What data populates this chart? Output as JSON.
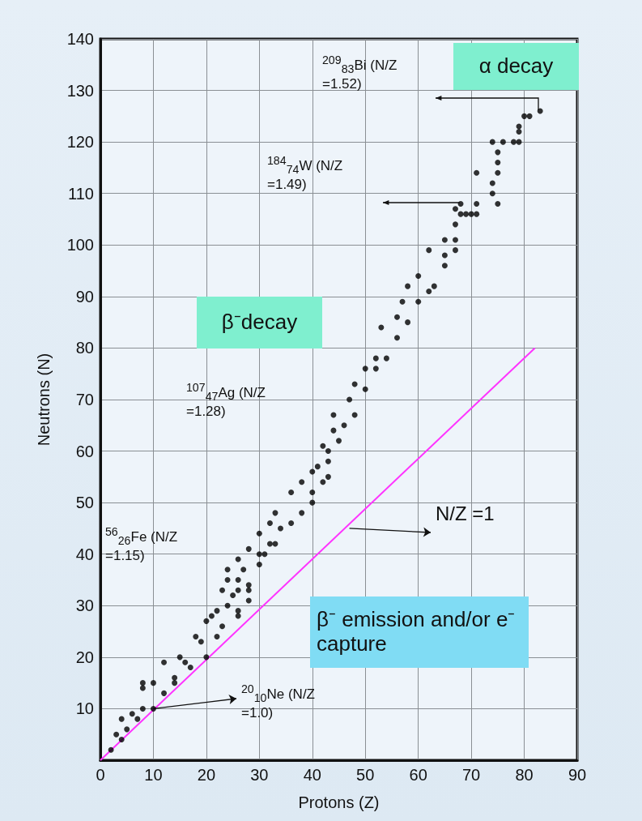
{
  "chart_data": {
    "type": "scatter",
    "xlabel": "Protons (Z)",
    "ylabel": "Neutrons (N)",
    "xlim": [
      0,
      90
    ],
    "xticks": [
      0,
      10,
      20,
      30,
      40,
      50,
      60,
      70,
      80,
      90
    ],
    "ylim": [
      0,
      140
    ],
    "yticks": [
      {
        "value": 0,
        "label": null
      },
      10,
      20,
      30,
      40,
      50,
      60,
      70,
      80,
      90,
      100,
      110,
      120,
      130,
      140
    ],
    "grid": true,
    "marker": "circle",
    "series": [
      {
        "color": "#000000",
        "x": [
          2,
          3,
          4,
          5,
          4,
          6,
          7,
          8,
          10,
          8,
          8,
          10,
          12,
          12,
          14,
          14,
          15,
          16,
          17,
          18,
          19,
          20,
          20,
          21,
          22,
          22,
          23,
          24,
          23,
          25,
          24,
          24,
          26,
          26,
          26,
          26,
          26,
          27,
          28,
          28,
          28,
          28,
          30,
          30,
          30,
          31,
          32,
          32,
          33,
          34,
          33,
          36,
          38,
          36,
          38,
          40,
          40,
          40,
          41,
          42,
          43,
          43,
          42,
          43,
          45,
          44,
          46,
          44,
          48,
          47,
          48,
          50,
          50,
          52,
          52,
          54,
          53,
          56,
          58,
          56,
          60,
          57,
          58,
          60,
          62,
          63,
          62,
          65,
          65,
          67,
          65,
          67,
          67,
          67,
          68,
          68,
          69,
          70,
          71,
          71,
          71,
          74,
          74,
          75,
          75,
          75,
          75,
          74,
          76,
          78,
          79,
          79,
          79,
          80,
          81,
          83
        ],
        "values": [
          2,
          5,
          4,
          6,
          8,
          9,
          8,
          10,
          10,
          15,
          14,
          15,
          13,
          19,
          16,
          15,
          20,
          19,
          18,
          24,
          23,
          20,
          27,
          28,
          29,
          24,
          26,
          30,
          33,
          32,
          35,
          37,
          29,
          28,
          35,
          33,
          39,
          37,
          31,
          34,
          33,
          41,
          44,
          40,
          38,
          40,
          42,
          46,
          48,
          45,
          42,
          46,
          48,
          52,
          54,
          50,
          52,
          56,
          57,
          54,
          58,
          55,
          61,
          60,
          62,
          64,
          65,
          67,
          67,
          70,
          73,
          72,
          76,
          78,
          76,
          78,
          84,
          82,
          85,
          86,
          89,
          89,
          92,
          94,
          91,
          92,
          99,
          96,
          98,
          99,
          101,
          101,
          104,
          107,
          108,
          106,
          106,
          106,
          106,
          108,
          114,
          112,
          110,
          108,
          114,
          116,
          118,
          120,
          120,
          120,
          120,
          122,
          123,
          125,
          125,
          126
        ]
      },
      {
        "type": "line",
        "marker": "none",
        "color": "#ff33ff",
        "x": [
          0,
          82
        ],
        "values": [
          0,
          80
        ]
      }
    ],
    "annotations": [
      "α decay",
      "β⁻decay",
      "β⁻ emission and/or e⁻ capture",
      "$^{209}$$_{83}$Bi (N/Z =1.52)",
      "$^{184}$$_{74}$W (N/Z =1.49)",
      "$^{107}$$_{47}$Ag (N/Z =1.28)",
      "$^{56}$$_{26}$Fe (N/Z =1.15)",
      {
        "text": "$^{20}$$_{10}$Ne (N/Z =1.0)",
        "x": 10,
        "y": 10
      },
      {
        "text": "N/Z =1",
        "x": 47,
        "y": 45
      }
    ]
  }
}
